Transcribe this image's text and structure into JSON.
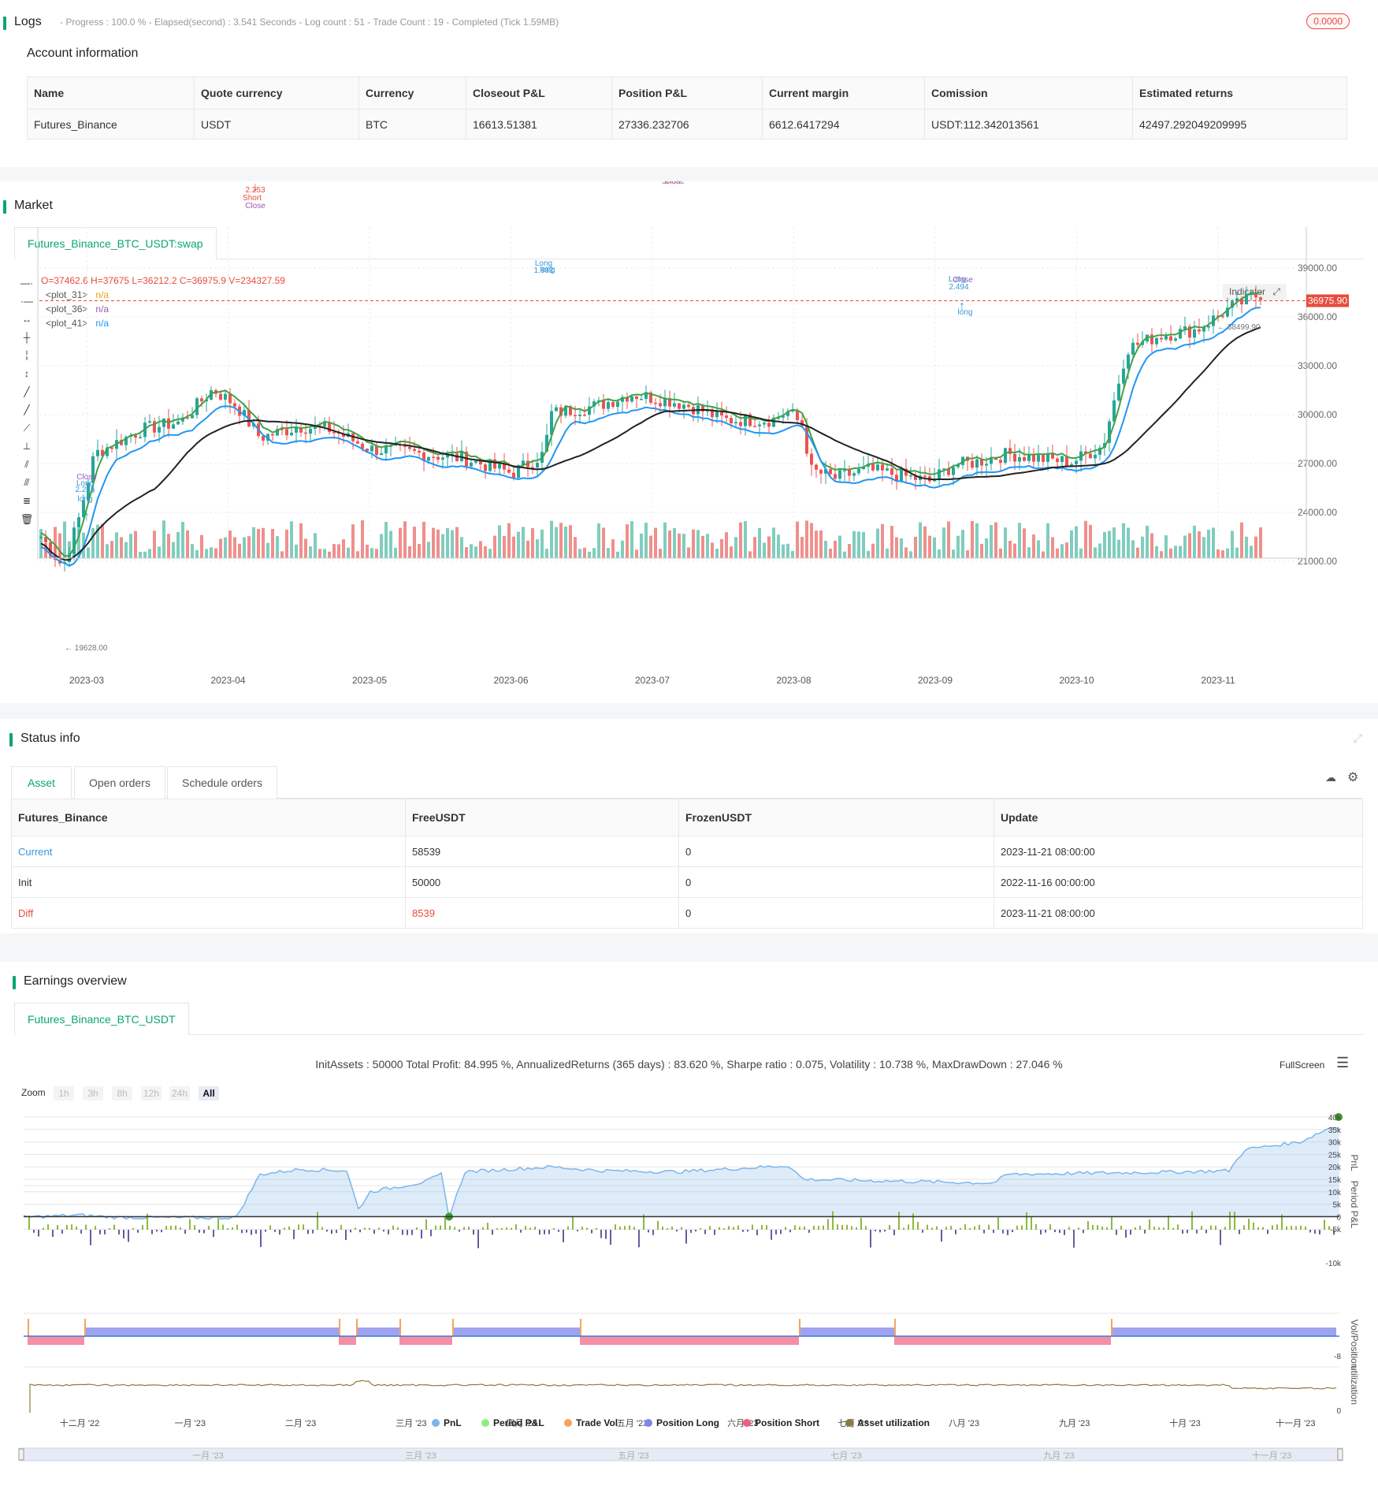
{
  "logs": {
    "title": "Logs",
    "progress_text": "- Progress : 100.0 % - Elapsed(second) : 3.541 Seconds - Log count : 51 - Trade Count : 19 - Completed (Tick 1.59MB)",
    "badge": "0.0000"
  },
  "account": {
    "title": "Account information",
    "headers": [
      "Name",
      "Quote currency",
      "Currency",
      "Closeout P&L",
      "Position P&L",
      "Current margin",
      "Comission",
      "Estimated returns"
    ],
    "row": [
      "Futures_Binance",
      "USDT",
      "BTC",
      "16613.51381",
      "27336.232706",
      "6612.6417294",
      "USDT:112.342013561",
      "42497.292049209995"
    ]
  },
  "market": {
    "title": "Market",
    "tab": "Futures_Binance_BTC_USDT:swap",
    "ohlcv": "O=37462.6 H=37675 L=36212.2 C=36975.9 V=234327.59",
    "legend": [
      {
        "name": "<plot_31>",
        "value": "n/a",
        "color": "#f39c12"
      },
      {
        "name": "<plot_36>",
        "value": "n/a",
        "color": "#9b59b6"
      },
      {
        "name": "<plot_41>",
        "value": "n/a",
        "color": "#2196f3"
      }
    ],
    "indicator_btn": "Indicator",
    "price_tag": "36975.90",
    "high_label": "38499.90",
    "low_label": "19628.00",
    "y_ticks": [
      "39000.00",
      "36000.00",
      "33000.00",
      "30000.00",
      "27000.00",
      "24000.00",
      "21000.00"
    ],
    "x_ticks": [
      "2023-03",
      "2023-04",
      "2023-05",
      "2023-06",
      "2023-07",
      "2023-08",
      "2023-09",
      "2023-10",
      "2023-11"
    ],
    "annotations": [
      "short",
      "2.253",
      "Short",
      "Close",
      "short",
      "1.979",
      "Short",
      "Close",
      "Long",
      "1.992",
      "long",
      "Long",
      "2.494",
      "long",
      "Close",
      "2.246",
      "Long",
      "long",
      "Close"
    ],
    "colors": {
      "up": "#26a69a",
      "down": "#ef5350",
      "ma_fast": "#43a047",
      "ma_mid": "#2196f3",
      "ma_slow": "#222222",
      "vol_up": "#7fcdbf",
      "vol_down": "#f08f8c"
    }
  },
  "status": {
    "title": "Status info",
    "tabs": [
      "Asset",
      "Open orders",
      "Schedule orders"
    ],
    "headers": [
      "Futures_Binance",
      "FreeUSDT",
      "FrozenUSDT",
      "Update"
    ],
    "rows": [
      [
        "Current",
        "58539",
        "0",
        "2023-11-21 08:00:00"
      ],
      [
        "Init",
        "50000",
        "0",
        "2022-11-16 00:00:00"
      ],
      [
        "Diff",
        "8539",
        "0",
        "2023-11-21 08:00:00"
      ]
    ]
  },
  "earnings": {
    "title": "Earnings overview",
    "tab": "Futures_Binance_BTC_USDT",
    "summary": "InitAssets : 50000 Total Profit: 84.995 %, AnnualizedReturns (365 days) : 83.620 %, Sharpe ratio : 0.075, Volatility : 10.738 %, MaxDrawDown : 27.046 %",
    "fullscreen": "FullScreen",
    "zoom_label": "Zoom",
    "zoom_buttons": [
      "1h",
      "3h",
      "8h",
      "12h",
      "24h",
      "All"
    ],
    "pnl_ticks": [
      "40k",
      "35k",
      "30k",
      "25k",
      "20k",
      "15k",
      "10k",
      "5k",
      "0",
      "-5k"
    ],
    "period_tick": "-10k",
    "pos_tick": "-8",
    "util_tick": "0",
    "axis_labels": [
      "PnL",
      "Period P&L",
      "Vol/Position",
      "utilization"
    ],
    "x_ticks": [
      "十二月 '22",
      "一月 '23",
      "二月 '23",
      "三月 '23",
      "四月 '23",
      "五月 '23",
      "六月 '23",
      "七月 '23",
      "八月 '23",
      "九月 '23",
      "十月 '23",
      "十一月 '23"
    ],
    "nav_ticks": [
      "一月 '23",
      "三月 '23",
      "五月 '23",
      "七月 '23",
      "九月 '23",
      "十一月 '23"
    ],
    "legend": [
      {
        "name": "PnL",
        "color": "#7cb5ec"
      },
      {
        "name": "Period P&L",
        "color": "#90ed7d"
      },
      {
        "name": "Trade Vol",
        "color": "#f7a35c"
      },
      {
        "name": "Position Long",
        "color": "#8085e9"
      },
      {
        "name": "Position Short",
        "color": "#f15c80"
      },
      {
        "name": "Asset utilization",
        "color": "#8d7b3a"
      }
    ]
  }
}
